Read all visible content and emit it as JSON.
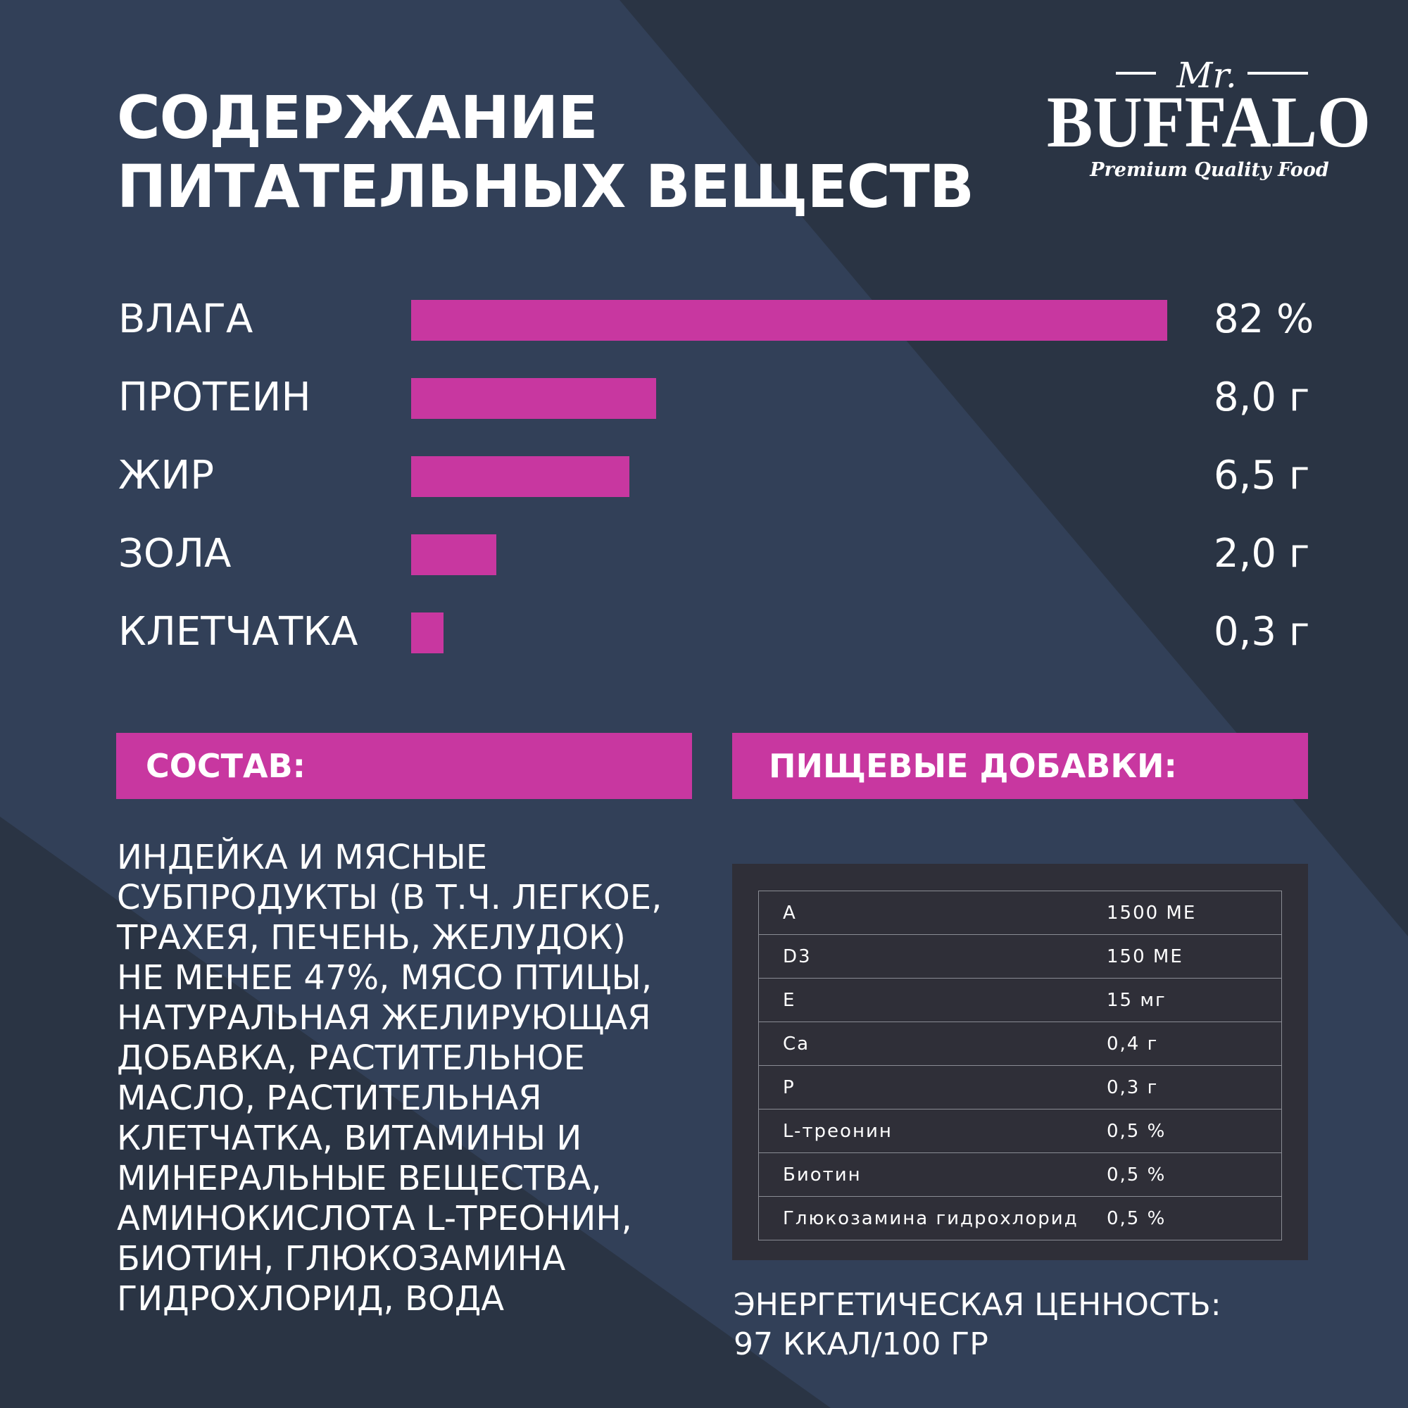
{
  "colors": {
    "background": "#2a3444",
    "stripe": "#324058",
    "accent": "#c837a0",
    "panel": "#2f2f38",
    "text": "#ffffff"
  },
  "title": {
    "line1": "СОДЕРЖАНИЕ",
    "line2": "ПИТАТЕЛЬНЫХ ВЕЩЕСТВ"
  },
  "logo": {
    "prefix": "Mr.",
    "brand": "BUFFALO",
    "tagline": "Premium Quality Food"
  },
  "nutrients": [
    {
      "name": "ВЛАГА",
      "display": "82 %",
      "level": 1.0
    },
    {
      "name": "ПРОТЕИН",
      "display": "8,0 г",
      "level": 0.324
    },
    {
      "name": "ЖИР",
      "display": "6,5 г",
      "level": 0.289
    },
    {
      "name": "ЗОЛА",
      "display": "2,0 г",
      "level": 0.113
    },
    {
      "name": "КЛЕТЧАТКА",
      "display": "0,3 г",
      "level": 0.043
    }
  ],
  "composition": {
    "header": "СОСТАВ:",
    "text": "ИНДЕЙКА И МЯСНЫЕ СУБПРОДУКТЫ (В Т.Ч. ЛЕГКОЕ, ТРАХЕЯ, ПЕЧЕНЬ, ЖЕЛУДОК) НЕ МЕНЕЕ 47%, МЯСО ПТИЦЫ, НАТУРАЛЬНАЯ ЖЕЛИРУЮЩАЯ ДОБАВКА, РАСТИТЕЛЬНОЕ МАСЛО, РАСТИТЕЛЬНАЯ КЛЕТЧАТКА, ВИТАМИНЫ И МИНЕРАЛЬНЫЕ ВЕЩЕСТВА, АМИНОКИСЛОТА L-ТРЕОНИН, БИОТИН, ГЛЮКОЗАМИНА ГИДРОХЛОРИД, ВОДА"
  },
  "additives": {
    "header": "ПИЩЕВЫЕ ДОБАВКИ:",
    "rows": [
      {
        "name": "A",
        "value": "1500 МЕ"
      },
      {
        "name": "D3",
        "value": "150 МЕ"
      },
      {
        "name": "E",
        "value": "15 мг"
      },
      {
        "name": "Ca",
        "value": "0,4 г"
      },
      {
        "name": "P",
        "value": "0,3 г"
      },
      {
        "name": "L-треонин",
        "value": "0,5 %"
      },
      {
        "name": "Биотин",
        "value": "0,5 %"
      },
      {
        "name": "Глюкозамина гидрохлорид",
        "value": "0,5 %"
      }
    ]
  },
  "energy": {
    "label": "ЭНЕРГЕТИЧЕСКАЯ ЦЕННОСТЬ:",
    "value": "97 ККАЛ/100 ГР"
  }
}
